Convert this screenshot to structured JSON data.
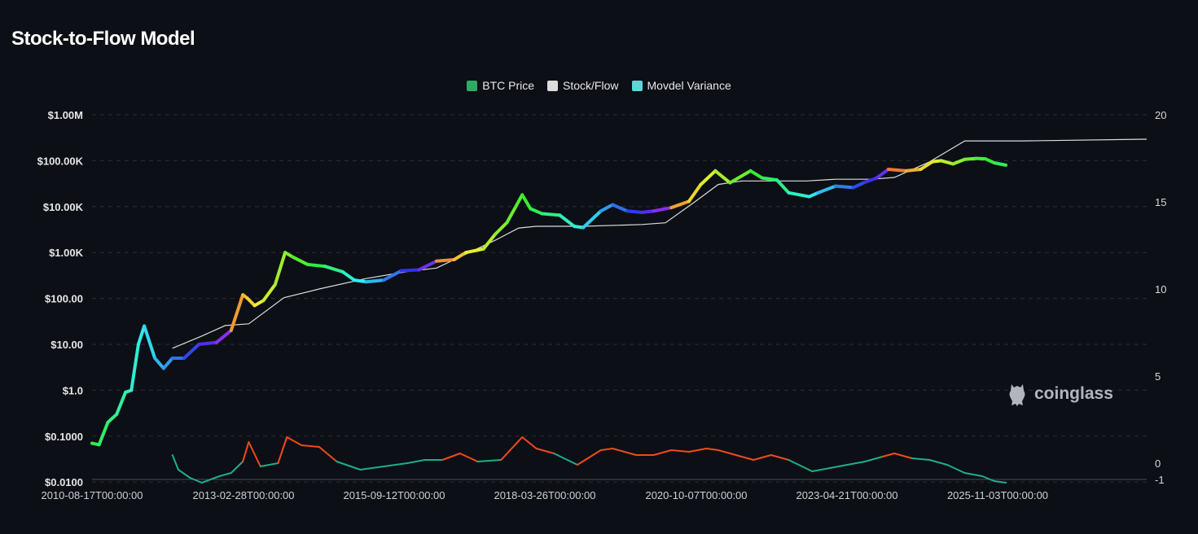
{
  "title": "Stock-to-Flow Model",
  "watermark": "coinglass",
  "legend": [
    {
      "label": "BTC Price",
      "color": "#2faa65"
    },
    {
      "label": "Stock/Flow",
      "color": "#dcdcdc"
    },
    {
      "label": "Movdel Variance",
      "color": "#5fd6d6"
    }
  ],
  "chart_data": {
    "type": "line",
    "title": "Stock-to-Flow Model",
    "y_left": {
      "scale": "log",
      "ticks": [
        {
          "value": 1000000,
          "label": "$1.00M"
        },
        {
          "value": 100000,
          "label": "$100.00K"
        },
        {
          "value": 10000,
          "label": "$10.00K"
        },
        {
          "value": 1000,
          "label": "$1.00K"
        },
        {
          "value": 100,
          "label": "$100.00"
        },
        {
          "value": 10,
          "label": "$10.00"
        },
        {
          "value": 1,
          "label": "$1.0"
        },
        {
          "value": 0.1,
          "label": "$0.1000"
        },
        {
          "value": 0.01,
          "label": "$0.0100"
        }
      ]
    },
    "y_right": {
      "ticks": [
        20,
        15,
        10,
        5,
        0,
        -1
      ],
      "note": "upper right axis is Stock/Flow (top 20 / bottom 0); lower band is Movdel Variance"
    },
    "x_ticks": [
      "2010-08-17T00:00:00",
      "2013-02-28T00:00:00",
      "2015-09-12T00:00:00",
      "2018-03-26T00:00:00",
      "2020-10-07T00:00:00",
      "2023-04-21T00:00:00",
      "2025-11-03T00:00:00"
    ],
    "x_range_years": [
      2010.63,
      2028.6
    ],
    "grid": true,
    "legend_position": "top-center",
    "series": [
      {
        "name": "BTC Price",
        "x": [
          2010.63,
          2010.75,
          2010.9,
          2011.05,
          2011.2,
          2011.3,
          2011.42,
          2011.52,
          2011.7,
          2011.85,
          2012.0,
          2012.2,
          2012.45,
          2012.75,
          2013.0,
          2013.2,
          2013.28,
          2013.4,
          2013.55,
          2013.75,
          2013.92,
          2014.05,
          2014.3,
          2014.6,
          2014.9,
          2015.1,
          2015.3,
          2015.6,
          2015.9,
          2016.2,
          2016.5,
          2016.8,
          2017.0,
          2017.3,
          2017.5,
          2017.7,
          2017.85,
          2017.96,
          2018.1,
          2018.3,
          2018.6,
          2018.85,
          2019.0,
          2019.3,
          2019.5,
          2019.75,
          2020.0,
          2020.2,
          2020.5,
          2020.8,
          2021.0,
          2021.25,
          2021.5,
          2021.85,
          2022.05,
          2022.3,
          2022.5,
          2022.85,
          2023.0,
          2023.3,
          2023.6,
          2023.8,
          2024.0,
          2024.2,
          2024.5,
          2024.75,
          2024.95,
          2025.1,
          2025.3,
          2025.5,
          2025.7,
          2025.85,
          2026.0,
          2026.2
        ],
        "y": [
          0.07,
          0.065,
          0.2,
          0.3,
          0.9,
          1.0,
          10,
          25,
          5,
          3,
          5,
          5,
          10,
          11,
          20,
          120,
          100,
          70,
          90,
          200,
          1000,
          800,
          550,
          500,
          380,
          250,
          230,
          250,
          400,
          420,
          650,
          700,
          1000,
          1200,
          2500,
          4500,
          10000,
          18000,
          9000,
          7000,
          6500,
          3700,
          3500,
          8000,
          11000,
          8000,
          7500,
          8000,
          9500,
          13000,
          30000,
          60000,
          33000,
          60000,
          42000,
          38000,
          20000,
          16500,
          20000,
          28000,
          26000,
          34000,
          42000,
          65000,
          60000,
          65000,
          95000,
          100000,
          85000,
          107000,
          112000,
          110000,
          90000,
          80000
        ]
      },
      {
        "name": "Stock/Flow",
        "x": [
          2012.0,
          2012.5,
          2012.9,
          2013.3,
          2013.9,
          2014.5,
          2015.3,
          2016.0,
          2016.5,
          2017.0,
          2017.5,
          2017.9,
          2018.2,
          2019.0,
          2020.0,
          2020.4,
          2020.9,
          2021.3,
          2021.7,
          2022.3,
          2022.8,
          2023.3,
          2023.9,
          2024.3,
          2024.9,
          2025.5,
          2026.5,
          2028.6
        ],
        "y": [
          6.6,
          7.3,
          7.9,
          8.0,
          9.5,
          10.0,
          10.6,
          11.0,
          11.2,
          12.0,
          12.8,
          13.5,
          13.6,
          13.6,
          13.7,
          13.8,
          15.0,
          16.0,
          16.2,
          16.2,
          16.2,
          16.3,
          16.3,
          16.4,
          17.3,
          18.5,
          18.5,
          18.6
        ]
      },
      {
        "name": "Movdel Variance",
        "x": [
          2012.0,
          2012.1,
          2012.3,
          2012.5,
          2012.8,
          2013.0,
          2013.2,
          2013.3,
          2013.5,
          2013.8,
          2013.95,
          2014.2,
          2014.5,
          2014.8,
          2015.2,
          2015.6,
          2016.0,
          2016.3,
          2016.6,
          2016.9,
          2017.2,
          2017.6,
          2017.96,
          2018.2,
          2018.5,
          2018.9,
          2019.3,
          2019.5,
          2019.9,
          2020.2,
          2020.5,
          2020.8,
          2021.1,
          2021.3,
          2021.6,
          2021.9,
          2022.2,
          2022.5,
          2022.9,
          2023.2,
          2023.5,
          2023.8,
          2024.1,
          2024.3,
          2024.6,
          2024.9,
          2025.2,
          2025.5,
          2025.8,
          2026.0,
          2026.2
        ],
        "y": [
          0.5,
          -0.4,
          -0.9,
          -1.2,
          -0.8,
          -0.6,
          0.1,
          1.3,
          -0.2,
          0.0,
          1.6,
          1.1,
          1.0,
          0.1,
          -0.4,
          -0.2,
          0.0,
          0.2,
          0.2,
          0.6,
          0.1,
          0.2,
          1.6,
          0.9,
          0.6,
          -0.1,
          0.8,
          0.9,
          0.5,
          0.5,
          0.8,
          0.7,
          0.9,
          0.8,
          0.5,
          0.2,
          0.5,
          0.2,
          -0.5,
          -0.3,
          -0.1,
          0.1,
          0.4,
          0.6,
          0.3,
          0.2,
          -0.1,
          -0.6,
          -0.8,
          -1.1,
          -1.2
        ]
      }
    ]
  }
}
